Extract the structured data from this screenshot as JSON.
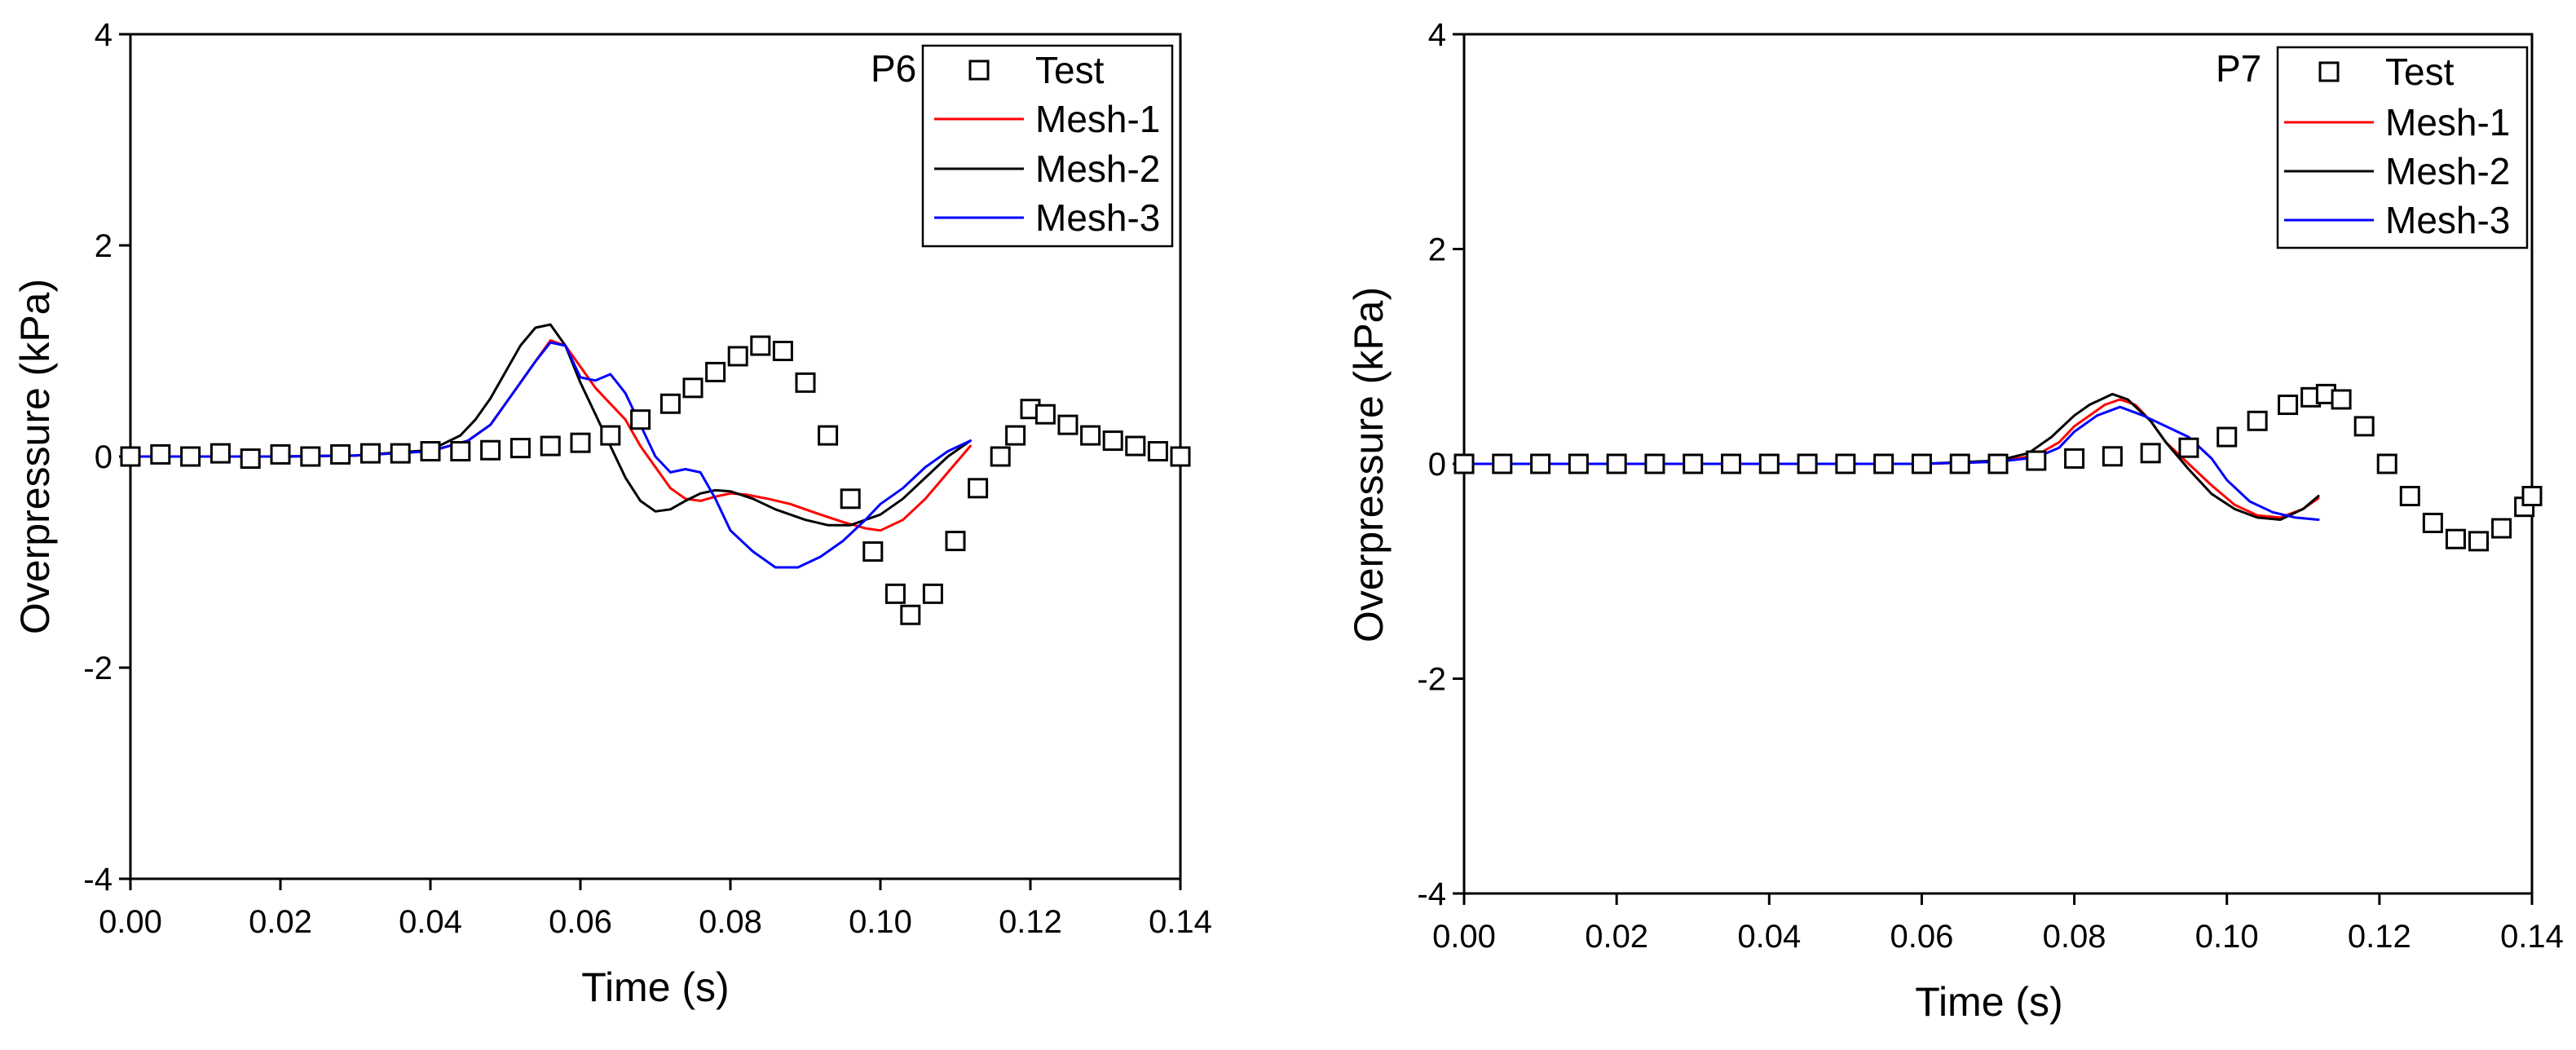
{
  "chart_data": [
    {
      "type": "line",
      "panel_label": "P6",
      "xlabel": "Time (s)",
      "ylabel": "Overpressure (kPa)",
      "xlim": [
        0,
        0.14
      ],
      "ylim": [
        -4,
        4
      ],
      "xticks": [
        0,
        0.02,
        0.04,
        0.06,
        0.08,
        0.1,
        0.12,
        0.14
      ],
      "xtick_labels": [
        "0.00",
        "0.02",
        "0.04",
        "0.06",
        "0.08",
        "0.10",
        "0.12",
        "0.14"
      ],
      "yticks": [
        -4,
        -2,
        0,
        2,
        4
      ],
      "ytick_labels": [
        "-4",
        "-2",
        "0",
        "2",
        "4"
      ],
      "legend_position": "top-right",
      "series": [
        {
          "name": "Test",
          "marker": "square",
          "color": "#000000",
          "x": [
            0,
            0.004,
            0.008,
            0.012,
            0.016,
            0.02,
            0.024,
            0.028,
            0.032,
            0.036,
            0.04,
            0.044,
            0.048,
            0.052,
            0.056,
            0.06,
            0.064,
            0.068,
            0.072,
            0.075,
            0.078,
            0.081,
            0.084,
            0.087,
            0.09,
            0.093,
            0.096,
            0.099,
            0.102,
            0.104,
            0.107,
            0.11,
            0.113,
            0.116,
            0.118,
            0.12,
            0.122,
            0.125,
            0.128,
            0.131,
            0.134,
            0.137,
            0.14
          ],
          "y": [
            0.0,
            0.02,
            0.0,
            0.03,
            -0.02,
            0.02,
            0.0,
            0.02,
            0.03,
            0.03,
            0.05,
            0.05,
            0.06,
            0.08,
            0.1,
            0.13,
            0.2,
            0.35,
            0.5,
            0.65,
            0.8,
            0.95,
            1.05,
            1.0,
            0.7,
            0.2,
            -0.4,
            -0.9,
            -1.3,
            -1.5,
            -1.3,
            -0.8,
            -0.3,
            0.0,
            0.2,
            0.45,
            0.4,
            0.3,
            0.2,
            0.15,
            0.1,
            0.05,
            0.0
          ]
        },
        {
          "name": "Mesh-1",
          "marker": "line",
          "color": "#ff0000",
          "x": [
            0,
            0.01,
            0.02,
            0.03,
            0.04,
            0.045,
            0.048,
            0.05,
            0.052,
            0.054,
            0.056,
            0.058,
            0.06,
            0.062,
            0.064,
            0.066,
            0.068,
            0.07,
            0.072,
            0.074,
            0.076,
            0.078,
            0.08,
            0.082,
            0.085,
            0.088,
            0.09,
            0.092,
            0.095,
            0.098,
            0.1,
            0.103,
            0.106,
            0.109,
            0.112
          ],
          "y": [
            0.0,
            0.0,
            0.0,
            0.01,
            0.05,
            0.15,
            0.3,
            0.5,
            0.7,
            0.9,
            1.1,
            1.05,
            0.85,
            0.65,
            0.5,
            0.35,
            0.1,
            -0.1,
            -0.3,
            -0.4,
            -0.42,
            -0.38,
            -0.35,
            -0.36,
            -0.4,
            -0.45,
            -0.5,
            -0.55,
            -0.62,
            -0.68,
            -0.7,
            -0.6,
            -0.4,
            -0.15,
            0.1
          ]
        },
        {
          "name": "Mesh-2",
          "marker": "line",
          "color": "#000000",
          "x": [
            0,
            0.01,
            0.02,
            0.03,
            0.04,
            0.044,
            0.046,
            0.048,
            0.05,
            0.052,
            0.054,
            0.056,
            0.058,
            0.06,
            0.062,
            0.064,
            0.066,
            0.068,
            0.07,
            0.072,
            0.074,
            0.076,
            0.078,
            0.08,
            0.083,
            0.086,
            0.09,
            0.093,
            0.096,
            0.1,
            0.103,
            0.106,
            0.109,
            0.112
          ],
          "y": [
            0.0,
            0.0,
            0.0,
            0.01,
            0.06,
            0.2,
            0.35,
            0.55,
            0.8,
            1.05,
            1.22,
            1.25,
            1.05,
            0.7,
            0.4,
            0.1,
            -0.2,
            -0.42,
            -0.52,
            -0.5,
            -0.42,
            -0.35,
            -0.32,
            -0.33,
            -0.4,
            -0.5,
            -0.6,
            -0.65,
            -0.65,
            -0.55,
            -0.4,
            -0.2,
            0.0,
            0.15
          ]
        },
        {
          "name": "Mesh-3",
          "marker": "line",
          "color": "#0000ff",
          "x": [
            0,
            0.01,
            0.02,
            0.03,
            0.04,
            0.045,
            0.048,
            0.05,
            0.052,
            0.054,
            0.056,
            0.058,
            0.06,
            0.062,
            0.064,
            0.066,
            0.068,
            0.07,
            0.072,
            0.074,
            0.076,
            0.078,
            0.08,
            0.083,
            0.086,
            0.089,
            0.092,
            0.095,
            0.098,
            0.1,
            0.103,
            0.106,
            0.109,
            0.112
          ],
          "y": [
            0.0,
            0.0,
            0.0,
            0.01,
            0.05,
            0.15,
            0.3,
            0.5,
            0.7,
            0.9,
            1.08,
            1.05,
            0.75,
            0.72,
            0.78,
            0.6,
            0.3,
            0.0,
            -0.15,
            -0.12,
            -0.15,
            -0.4,
            -0.7,
            -0.9,
            -1.05,
            -1.05,
            -0.95,
            -0.8,
            -0.6,
            -0.45,
            -0.3,
            -0.1,
            0.05,
            0.15
          ]
        }
      ]
    },
    {
      "type": "line",
      "panel_label": "P7",
      "xlabel": "Time (s)",
      "ylabel": "Overpressure (kPa)",
      "xlim": [
        0,
        0.14
      ],
      "ylim": [
        -4,
        4
      ],
      "xticks": [
        0,
        0.02,
        0.04,
        0.06,
        0.08,
        0.1,
        0.12,
        0.14
      ],
      "xtick_labels": [
        "0.00",
        "0.02",
        "0.04",
        "0.06",
        "0.08",
        "0.10",
        "0.12",
        "0.14"
      ],
      "yticks": [
        -4,
        -2,
        0,
        2,
        4
      ],
      "ytick_labels": [
        "-4",
        "-2",
        "0",
        "2",
        "4"
      ],
      "legend_position": "top-right",
      "series": [
        {
          "name": "Test",
          "marker": "square",
          "color": "#000000",
          "x": [
            0,
            0.005,
            0.01,
            0.015,
            0.02,
            0.025,
            0.03,
            0.035,
            0.04,
            0.045,
            0.05,
            0.055,
            0.06,
            0.065,
            0.07,
            0.075,
            0.08,
            0.085,
            0.09,
            0.095,
            0.1,
            0.104,
            0.108,
            0.111,
            0.113,
            0.115,
            0.118,
            0.121,
            0.124,
            0.127,
            0.13,
            0.133,
            0.136,
            0.139,
            0.14
          ],
          "y": [
            0.0,
            0.0,
            0.0,
            0.0,
            0.0,
            0.0,
            0.0,
            0.0,
            0.0,
            0.0,
            0.0,
            0.0,
            0.0,
            0.0,
            0.0,
            0.03,
            0.05,
            0.07,
            0.1,
            0.15,
            0.25,
            0.4,
            0.55,
            0.62,
            0.65,
            0.6,
            0.35,
            0.0,
            -0.3,
            -0.55,
            -0.7,
            -0.72,
            -0.6,
            -0.4,
            -0.3
          ]
        },
        {
          "name": "Mesh-1",
          "marker": "line",
          "color": "#ff0000",
          "x": [
            0,
            0.02,
            0.04,
            0.06,
            0.07,
            0.075,
            0.078,
            0.08,
            0.082,
            0.084,
            0.086,
            0.088,
            0.09,
            0.092,
            0.095,
            0.098,
            0.101,
            0.104,
            0.107,
            0.11,
            0.112
          ],
          "y": [
            0.0,
            0.0,
            0.0,
            0.0,
            0.02,
            0.08,
            0.2,
            0.35,
            0.45,
            0.55,
            0.6,
            0.55,
            0.4,
            0.2,
            0.0,
            -0.2,
            -0.38,
            -0.48,
            -0.5,
            -0.42,
            -0.32
          ]
        },
        {
          "name": "Mesh-2",
          "marker": "line",
          "color": "#000000",
          "x": [
            0,
            0.02,
            0.04,
            0.06,
            0.07,
            0.074,
            0.077,
            0.08,
            0.082,
            0.085,
            0.087,
            0.09,
            0.092,
            0.095,
            0.098,
            0.101,
            0.104,
            0.107,
            0.11,
            0.112
          ],
          "y": [
            0.0,
            0.0,
            0.0,
            0.0,
            0.03,
            0.1,
            0.25,
            0.45,
            0.55,
            0.65,
            0.6,
            0.4,
            0.2,
            -0.05,
            -0.28,
            -0.42,
            -0.5,
            -0.52,
            -0.42,
            -0.3
          ]
        },
        {
          "name": "Mesh-3",
          "marker": "line",
          "color": "#0000ff",
          "x": [
            0,
            0.02,
            0.04,
            0.06,
            0.07,
            0.075,
            0.078,
            0.08,
            0.083,
            0.086,
            0.089,
            0.092,
            0.095,
            0.098,
            0.1,
            0.103,
            0.106,
            0.109,
            0.112
          ],
          "y": [
            0.0,
            0.0,
            0.0,
            0.0,
            0.02,
            0.06,
            0.15,
            0.3,
            0.45,
            0.53,
            0.45,
            0.35,
            0.25,
            0.05,
            -0.15,
            -0.35,
            -0.45,
            -0.5,
            -0.52
          ]
        }
      ]
    }
  ]
}
